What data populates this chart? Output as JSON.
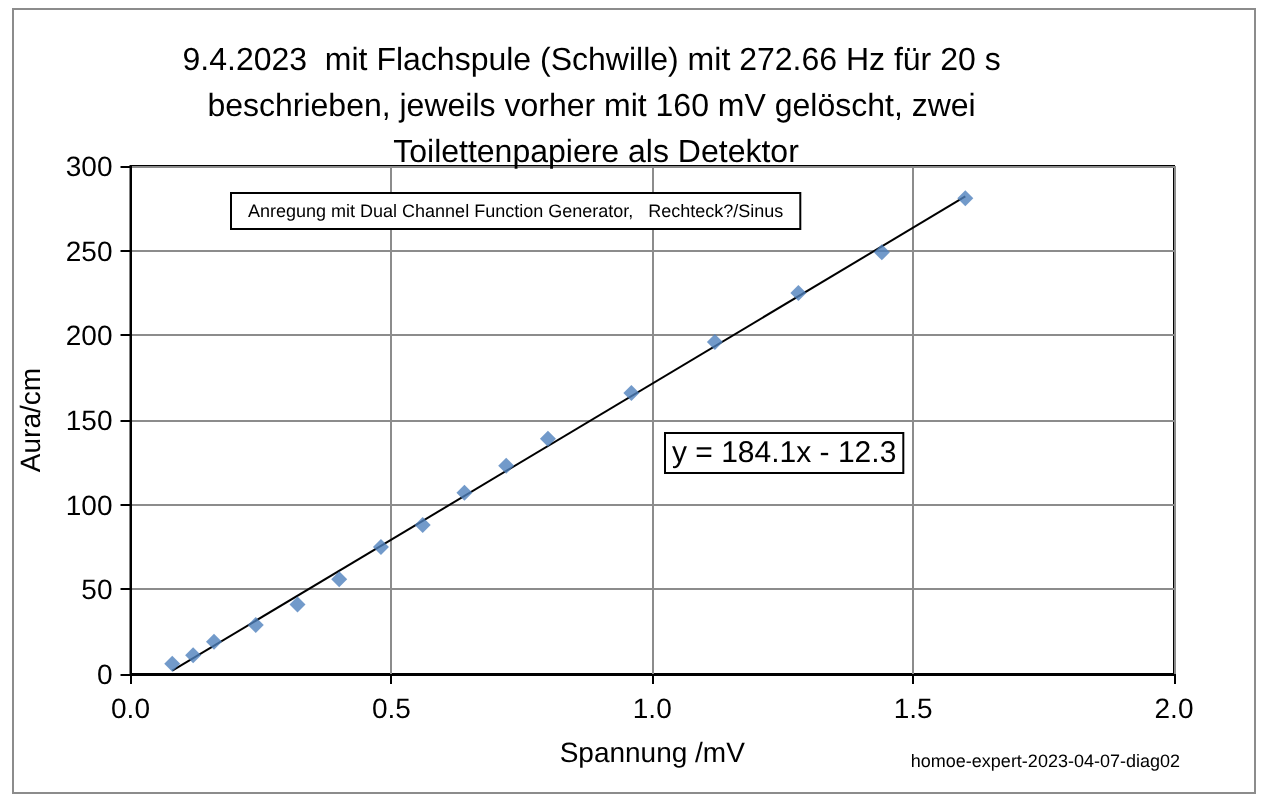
{
  "chart_data": {
    "type": "scatter",
    "title": "9.4.2023  mit Flachspule (Schwille) mit 272.66 Hz für 20 s beschrieben, jeweils vorher mit 160 mV gelöscht, zwei Toilettenpapiere als Detektor",
    "xlabel": "Spannung /mV",
    "ylabel": "Aura/cm",
    "series": [
      {
        "color": "#4f81bd",
        "x": [
          0.08,
          0.12,
          0.16,
          0.24,
          0.32,
          0.4,
          0.48,
          0.56,
          0.64,
          0.72,
          0.8,
          0.96,
          1.12,
          1.28,
          1.44,
          1.6
        ],
        "values": [
          6,
          11,
          19,
          29,
          41,
          56,
          75,
          88,
          107,
          123,
          139,
          166,
          196,
          225,
          249,
          281
        ]
      },
      {
        "type": "line",
        "color": "#000000",
        "marker": "none",
        "x": [
          0.08,
          1.6
        ],
        "values": [
          2,
          282
        ]
      }
    ],
    "xlim": [
      0,
      2
    ],
    "xticks": [
      {
        "value": 0,
        "label": "0.0"
      },
      0.5,
      {
        "value": 1,
        "label": "1.0"
      },
      1.5,
      {
        "value": 2,
        "label": "2.0"
      }
    ],
    "ylim": [
      0,
      300
    ],
    "yticks": [
      0,
      50,
      100,
      150,
      200,
      250,
      300
    ],
    "grid": true,
    "marker": "diamond",
    "annotations": [
      "Anregung mit Dual Channel Function Generator,   Rechteck?/Sinus",
      "y = 184.1x - 12.3",
      "homoe-expert-2023-04-07-diag02"
    ]
  }
}
